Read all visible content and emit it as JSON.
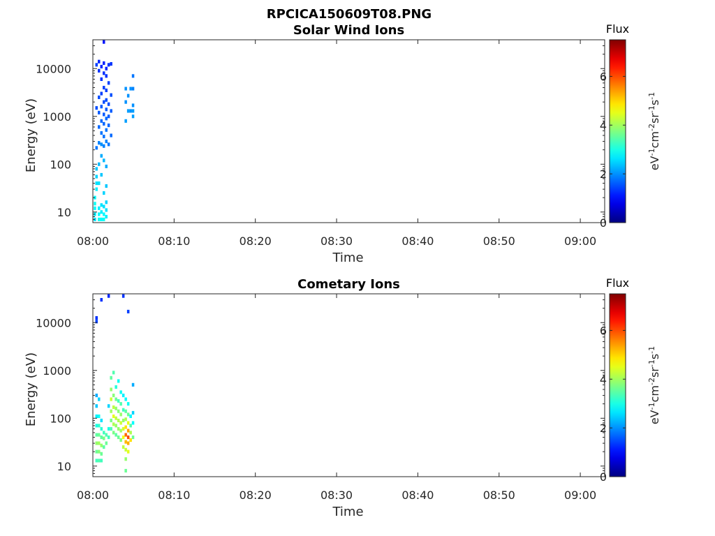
{
  "figure": {
    "title": "RPCICA150609T08.PNG"
  },
  "colors": {
    "axis": "#262626",
    "background": "#ffffff",
    "colormap": "jet"
  },
  "chart_data": [
    {
      "type": "heatmap",
      "title": "Solar Wind Ions",
      "xlabel": "Time",
      "ylabel": "Energy (eV)",
      "x_scale": "time",
      "y_scale": "log",
      "xlim": [
        "08:00",
        "09:03"
      ],
      "ylim": [
        6,
        40000
      ],
      "x_ticks": [
        "08:00",
        "08:10",
        "08:20",
        "08:30",
        "08:40",
        "08:50",
        "09:00"
      ],
      "y_ticks": [
        "10",
        "100",
        "1000",
        "10000"
      ],
      "grid": false,
      "colorbar": {
        "title": "Flux",
        "label": "eV-1cm-2sr-1s-1",
        "range": [
          0,
          7.5
        ],
        "ticks": [
          "0",
          "2",
          "4",
          "6"
        ]
      },
      "cells": [
        [
          "08:00.1",
          7,
          2.6
        ],
        [
          "08:00.1",
          9,
          2.7
        ],
        [
          "08:00.1",
          12,
          2.8
        ],
        [
          "08:00.1",
          15,
          2.9
        ],
        [
          "08:00.1",
          20,
          2.8
        ],
        [
          "08:00.3",
          30,
          2.7
        ],
        [
          "08:00.3",
          40,
          2.6
        ],
        [
          "08:00.3",
          55,
          2.5
        ],
        [
          "08:00.3",
          80,
          2.4
        ],
        [
          "08:00.6",
          7,
          2.9
        ],
        [
          "08:00.6",
          9,
          2.8
        ],
        [
          "08:00.6",
          12,
          2.7
        ],
        [
          "08:00.6",
          40,
          2.6
        ],
        [
          "08:00.6",
          100,
          2.3
        ],
        [
          "08:00.9",
          7,
          2.8
        ],
        [
          "08:00.9",
          10,
          2.7
        ],
        [
          "08:00.9",
          14,
          2.6
        ],
        [
          "08:00.9",
          60,
          2.4
        ],
        [
          "08:00.9",
          150,
          2.2
        ],
        [
          "08:01.2",
          7,
          2.9
        ],
        [
          "08:01.2",
          9,
          2.8
        ],
        [
          "08:01.2",
          13,
          2.6
        ],
        [
          "08:01.2",
          25,
          2.5
        ],
        [
          "08:01.2",
          120,
          2.3
        ],
        [
          "08:01.5",
          8,
          2.7
        ],
        [
          "08:01.5",
          11,
          2.6
        ],
        [
          "08:01.5",
          16,
          2.5
        ],
        [
          "08:01.5",
          35,
          2.4
        ],
        [
          "08:01.5",
          90,
          2.2
        ],
        [
          "08:00.3",
          220,
          1.8
        ],
        [
          "08:00.3",
          1500,
          1.5
        ],
        [
          "08:00.3",
          12000,
          1.4
        ],
        [
          "08:00.6",
          280,
          1.9
        ],
        [
          "08:00.6",
          600,
          1.7
        ],
        [
          "08:00.6",
          1200,
          1.6
        ],
        [
          "08:00.6",
          2500,
          1.5
        ],
        [
          "08:00.6",
          9000,
          1.3
        ],
        [
          "08:00.6",
          14000,
          1.2
        ],
        [
          "08:00.9",
          260,
          2.0
        ],
        [
          "08:00.9",
          450,
          1.8
        ],
        [
          "08:00.9",
          800,
          1.7
        ],
        [
          "08:00.9",
          1600,
          1.6
        ],
        [
          "08:00.9",
          3000,
          1.4
        ],
        [
          "08:00.9",
          6000,
          1.3
        ],
        [
          "08:00.9",
          11000,
          1.2
        ],
        [
          "08:01.2",
          240,
          1.9
        ],
        [
          "08:01.2",
          380,
          1.8
        ],
        [
          "08:01.2",
          700,
          1.7
        ],
        [
          "08:01.2",
          1100,
          1.6
        ],
        [
          "08:01.2",
          2000,
          1.5
        ],
        [
          "08:01.2",
          4000,
          1.4
        ],
        [
          "08:01.2",
          8000,
          1.3
        ],
        [
          "08:01.2",
          13000,
          1.2
        ],
        [
          "08:01.2",
          36000,
          1.1
        ],
        [
          "08:01.5",
          300,
          1.9
        ],
        [
          "08:01.5",
          520,
          1.8
        ],
        [
          "08:01.5",
          900,
          1.7
        ],
        [
          "08:01.5",
          1400,
          1.6
        ],
        [
          "08:01.5",
          2200,
          1.5
        ],
        [
          "08:01.5",
          3500,
          1.4
        ],
        [
          "08:01.5",
          7000,
          1.3
        ],
        [
          "08:01.5",
          10000,
          1.2
        ],
        [
          "08:01.8",
          260,
          1.8
        ],
        [
          "08:01.8",
          650,
          1.7
        ],
        [
          "08:01.8",
          1000,
          1.6
        ],
        [
          "08:01.8",
          1800,
          1.5
        ],
        [
          "08:01.8",
          5000,
          1.4
        ],
        [
          "08:01.8",
          12000,
          1.3
        ],
        [
          "08:02.1",
          400,
          1.7
        ],
        [
          "08:02.1",
          1300,
          1.6
        ],
        [
          "08:02.1",
          2800,
          1.5
        ],
        [
          "08:02.1",
          12500,
          1.3
        ],
        [
          "08:03.9",
          800,
          2.1
        ],
        [
          "08:03.9",
          2000,
          2.0
        ],
        [
          "08:03.9",
          3800,
          2.0
        ],
        [
          "08:04.2",
          1300,
          2.1
        ],
        [
          "08:04.2",
          2700,
          2.0
        ],
        [
          "08:04.5",
          1300,
          2.0
        ],
        [
          "08:04.5",
          3800,
          2.0
        ],
        [
          "08:04.8",
          1000,
          2.1
        ],
        [
          "08:04.8",
          1300,
          2.1
        ],
        [
          "08:04.8",
          1700,
          2.0
        ],
        [
          "08:04.8",
          3800,
          1.9
        ],
        [
          "08:04.8",
          7000,
          1.8
        ]
      ]
    },
    {
      "type": "heatmap",
      "title": "Cometary Ions",
      "xlabel": "Time",
      "ylabel": "Energy (eV)",
      "x_scale": "time",
      "y_scale": "log",
      "xlim": [
        "08:00",
        "09:03"
      ],
      "ylim": [
        6,
        40000
      ],
      "x_ticks": [
        "08:00",
        "08:10",
        "08:20",
        "08:30",
        "08:40",
        "08:50",
        "09:00"
      ],
      "y_ticks": [
        "10",
        "100",
        "1000",
        "10000"
      ],
      "grid": false,
      "colorbar": {
        "title": "Flux",
        "label": "eV-1cm-2sr-1s-1",
        "range": [
          0,
          7.5
        ],
        "ticks": [
          "0",
          "2",
          "4",
          "6"
        ]
      },
      "cells": [
        [
          "08:00.3",
          13,
          3.3
        ],
        [
          "08:00.3",
          20,
          3.6
        ],
        [
          "08:00.3",
          30,
          3.9
        ],
        [
          "08:00.3",
          45,
          3.5
        ],
        [
          "08:00.3",
          70,
          3.0
        ],
        [
          "08:00.3",
          110,
          2.7
        ],
        [
          "08:00.3",
          180,
          2.4
        ],
        [
          "08:00.3",
          300,
          2.2
        ],
        [
          "08:00.6",
          13,
          3.4
        ],
        [
          "08:00.6",
          20,
          3.8
        ],
        [
          "08:00.6",
          30,
          4.0
        ],
        [
          "08:00.6",
          45,
          3.6
        ],
        [
          "08:00.6",
          70,
          3.2
        ],
        [
          "08:00.6",
          110,
          2.9
        ],
        [
          "08:00.6",
          250,
          2.5
        ],
        [
          "08:00.9",
          13,
          3.3
        ],
        [
          "08:00.9",
          18,
          3.6
        ],
        [
          "08:00.9",
          27,
          3.9
        ],
        [
          "08:00.9",
          40,
          3.5
        ],
        [
          "08:00.9",
          60,
          3.1
        ],
        [
          "08:00.9",
          90,
          2.6
        ],
        [
          "08:01.2",
          25,
          3.5
        ],
        [
          "08:01.2",
          38,
          3.7
        ],
        [
          "08:01.2",
          50,
          3.3
        ],
        [
          "08:01.5",
          30,
          3.6
        ],
        [
          "08:01.5",
          45,
          3.4
        ],
        [
          "08:01.8",
          40,
          3.3
        ],
        [
          "08:01.8",
          60,
          3.0
        ],
        [
          "08:01.8",
          180,
          2.5
        ],
        [
          "08:02.1",
          60,
          3.4
        ],
        [
          "08:02.1",
          90,
          3.7
        ],
        [
          "08:02.1",
          140,
          4.0
        ],
        [
          "08:02.1",
          250,
          4.3
        ],
        [
          "08:02.1",
          400,
          3.9
        ],
        [
          "08:02.1",
          700,
          3.5
        ],
        [
          "08:02.4",
          50,
          3.7
        ],
        [
          "08:02.4",
          75,
          4.1
        ],
        [
          "08:02.4",
          110,
          4.5
        ],
        [
          "08:02.4",
          170,
          4.2
        ],
        [
          "08:02.4",
          300,
          3.8
        ],
        [
          "08:02.4",
          900,
          3.4
        ],
        [
          "08:02.7",
          45,
          3.5
        ],
        [
          "08:02.7",
          70,
          3.9
        ],
        [
          "08:02.7",
          100,
          4.2
        ],
        [
          "08:02.7",
          160,
          3.9
        ],
        [
          "08:02.7",
          250,
          3.6
        ],
        [
          "08:02.7",
          450,
          3.1
        ],
        [
          "08:03.0",
          40,
          3.6
        ],
        [
          "08:03.0",
          60,
          3.9
        ],
        [
          "08:03.0",
          90,
          4.1
        ],
        [
          "08:03.0",
          140,
          3.8
        ],
        [
          "08:03.0",
          230,
          3.3
        ],
        [
          "08:03.0",
          600,
          2.9
        ],
        [
          "08:03.3",
          35,
          3.8
        ],
        [
          "08:03.3",
          55,
          4.0
        ],
        [
          "08:03.3",
          80,
          4.3
        ],
        [
          "08:03.3",
          120,
          3.9
        ],
        [
          "08:03.3",
          200,
          3.4
        ],
        [
          "08:03.3",
          350,
          2.9
        ],
        [
          "08:03.6",
          25,
          4.2
        ],
        [
          "08:03.6",
          40,
          4.6
        ],
        [
          "08:03.6",
          60,
          4.4
        ],
        [
          "08:03.6",
          90,
          3.9
        ],
        [
          "08:03.6",
          150,
          3.3
        ],
        [
          "08:03.6",
          300,
          2.7
        ],
        [
          "08:03.9",
          8,
          3.6
        ],
        [
          "08:03.9",
          14,
          3.9
        ],
        [
          "08:03.9",
          22,
          4.3
        ],
        [
          "08:03.9",
          32,
          5.2
        ],
        [
          "08:03.9",
          45,
          5.8
        ],
        [
          "08:03.9",
          65,
          4.9
        ],
        [
          "08:03.9",
          95,
          4.1
        ],
        [
          "08:03.9",
          140,
          3.5
        ],
        [
          "08:03.9",
          250,
          2.8
        ],
        [
          "08:04.2",
          20,
          4.5
        ],
        [
          "08:04.2",
          30,
          5.3
        ],
        [
          "08:04.2",
          40,
          6.0
        ],
        [
          "08:04.2",
          55,
          5.4
        ],
        [
          "08:04.2",
          80,
          4.5
        ],
        [
          "08:04.2",
          120,
          3.6
        ],
        [
          "08:04.2",
          200,
          2.9
        ],
        [
          "08:04.5",
          35,
          4.9
        ],
        [
          "08:04.5",
          50,
          4.1
        ],
        [
          "08:04.5",
          70,
          3.4
        ],
        [
          "08:04.5",
          110,
          2.8
        ],
        [
          "08:04.8",
          40,
          3.6
        ],
        [
          "08:04.8",
          80,
          2.8
        ],
        [
          "08:04.8",
          130,
          2.5
        ],
        [
          "08:04.8",
          500,
          2.2
        ],
        [
          "08:00.3",
          10500,
          1.4
        ],
        [
          "08:00.3",
          12500,
          1.3
        ],
        [
          "08:00.9",
          30000,
          1.3
        ],
        [
          "08:01.8",
          36000,
          1.2
        ],
        [
          "08:03.6",
          36000,
          1.3
        ],
        [
          "08:04.2",
          17000,
          1.4
        ]
      ]
    }
  ]
}
